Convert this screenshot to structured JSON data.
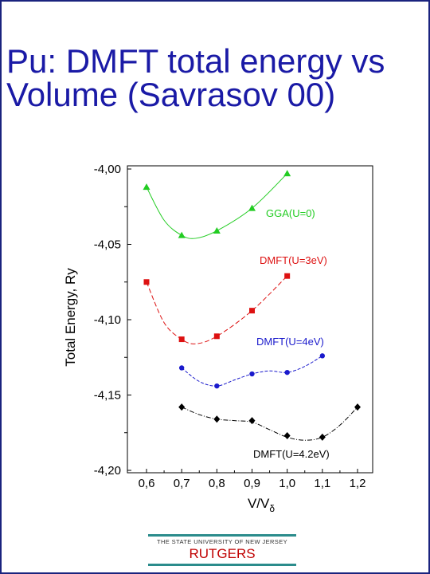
{
  "page": {
    "title": "Pu: DMFT total energy vs Volume (Savrasov 00)"
  },
  "chart_data": {
    "type": "scatter",
    "title": "",
    "xlabel": "V/Vδ",
    "ylabel": "Total Energy, Ry",
    "xlim": [
      0.55,
      1.25
    ],
    "ylim": [
      -4.2,
      -4.0
    ],
    "x_ticks": [
      "0,6",
      "0,7",
      "0,8",
      "0,9",
      "1,0",
      "1,1",
      "1,2"
    ],
    "x_tick_values": [
      0.6,
      0.7,
      0.8,
      0.9,
      1.0,
      1.1,
      1.2
    ],
    "y_ticks": [
      "-4,00",
      "-4,05",
      "-4,10",
      "-4,15",
      "-4,20"
    ],
    "y_tick_values": [
      -4.0,
      -4.05,
      -4.1,
      -4.15,
      -4.2
    ],
    "grid": false,
    "series": [
      {
        "name": "GGA(U=0)",
        "color": "#22cc22",
        "marker": "triangle",
        "x": [
          0.6,
          0.7,
          0.8,
          0.9,
          1.0
        ],
        "y": [
          -4.012,
          -4.044,
          -4.041,
          -4.026,
          -4.003
        ],
        "fit_x": [
          0.6,
          0.65,
          0.7,
          0.74,
          0.8,
          0.9,
          1.0
        ],
        "fit_y": [
          -4.012,
          -4.034,
          -4.044,
          -4.046,
          -4.041,
          -4.026,
          -4.003
        ]
      },
      {
        "name": "DMFT(U=3eV)",
        "color": "#dd1111",
        "marker": "square",
        "x": [
          0.6,
          0.7,
          0.8,
          0.9,
          1.0
        ],
        "y": [
          -4.075,
          -4.113,
          -4.111,
          -4.094,
          -4.071
        ],
        "fit_x": [
          0.6,
          0.65,
          0.7,
          0.74,
          0.8,
          0.9,
          1.0
        ],
        "fit_y": [
          -4.075,
          -4.102,
          -4.113,
          -4.116,
          -4.111,
          -4.094,
          -4.071
        ]
      },
      {
        "name": "DMFT(U=4eV)",
        "color": "#1a1acc",
        "marker": "circle",
        "x": [
          0.7,
          0.8,
          0.9,
          1.0,
          1.1
        ],
        "y": [
          -4.132,
          -4.144,
          -4.136,
          -4.135,
          -4.124
        ],
        "fit_x": [
          0.7,
          0.75,
          0.8,
          0.85,
          0.9,
          0.95,
          1.0,
          1.05,
          1.1
        ],
        "fit_y": [
          -4.132,
          -4.141,
          -4.144,
          -4.14,
          -4.136,
          -4.134,
          -4.135,
          -4.131,
          -4.124
        ]
      },
      {
        "name": "DMFT(U=4.2eV)",
        "color": "#000000",
        "marker": "diamond",
        "x": [
          0.7,
          0.8,
          0.9,
          1.0,
          1.1,
          1.2
        ],
        "y": [
          -4.158,
          -4.166,
          -4.167,
          -4.177,
          -4.178,
          -4.158
        ],
        "fit_x": [
          0.7,
          0.75,
          0.8,
          0.85,
          0.9,
          0.95,
          1.0,
          1.05,
          1.1,
          1.15,
          1.2
        ],
        "fit_y": [
          -4.158,
          -4.163,
          -4.166,
          -4.167,
          -4.168,
          -4.173,
          -4.178,
          -4.18,
          -4.178,
          -4.17,
          -4.158
        ]
      }
    ]
  },
  "footer": {
    "university": "THE STATE UNIVERSITY OF NEW JERSEY",
    "name": "RUTGERS",
    "accent_color": "#2b8c8c"
  }
}
